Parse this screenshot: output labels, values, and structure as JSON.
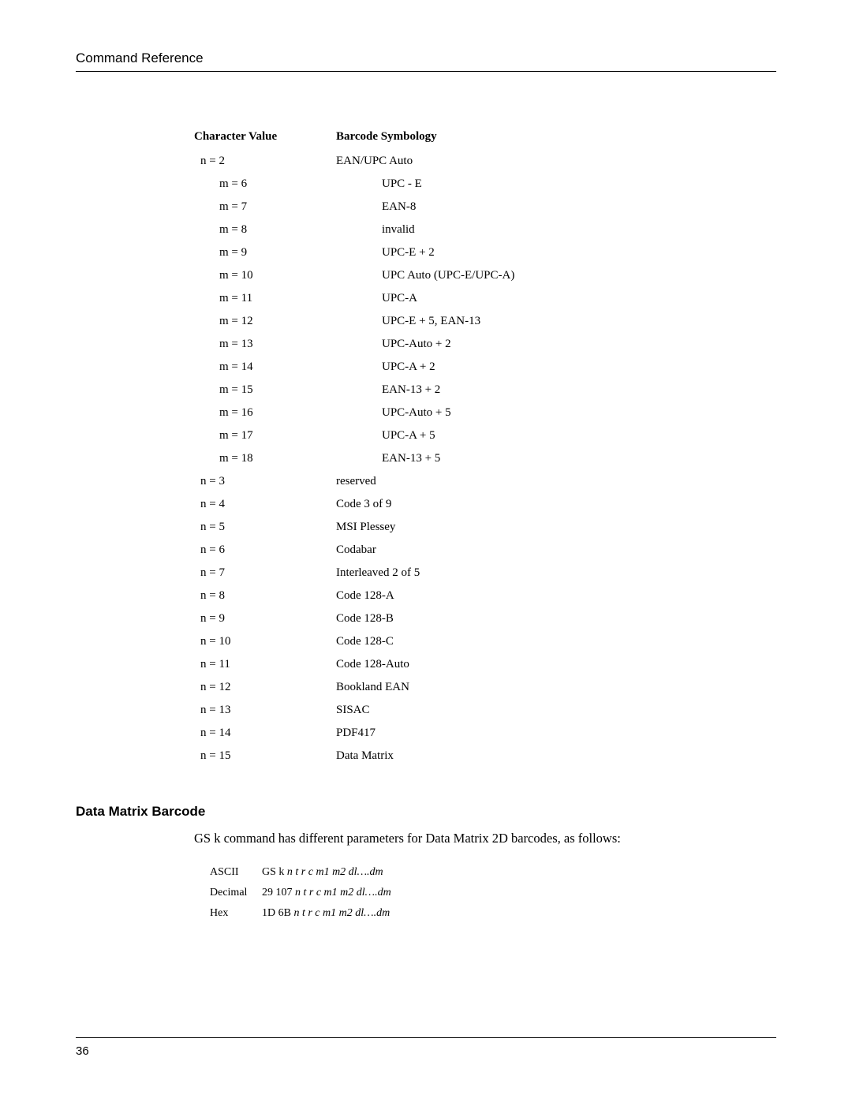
{
  "header": {
    "left": "Command Reference",
    "right": ""
  },
  "table": {
    "col1_header": "Character Value",
    "col2_header": "Barcode Symbology",
    "rows": [
      {
        "c": "n = 2",
        "s": "EAN/UPC Auto",
        "indent": 0,
        "sindent": 0
      },
      {
        "c": "m = 6",
        "s": "UPC - E",
        "indent": 1,
        "sindent": 1
      },
      {
        "c": "m = 7",
        "s": "EAN-8",
        "indent": 1,
        "sindent": 1
      },
      {
        "c": "m = 8",
        "s": "invalid",
        "indent": 1,
        "sindent": 1
      },
      {
        "c": "m = 9",
        "s": "UPC-E + 2",
        "indent": 1,
        "sindent": 1
      },
      {
        "c": "m = 10",
        "s": "UPC Auto (UPC-E/UPC-A)",
        "indent": 1,
        "sindent": 1
      },
      {
        "c": "m = 11",
        "s": "UPC-A",
        "indent": 1,
        "sindent": 1
      },
      {
        "c": "m = 12",
        "s": "UPC-E + 5, EAN-13",
        "indent": 1,
        "sindent": 1
      },
      {
        "c": "m = 13",
        "s": "UPC-Auto + 2",
        "indent": 1,
        "sindent": 1
      },
      {
        "c": "m = 14",
        "s": "UPC-A + 2",
        "indent": 1,
        "sindent": 1
      },
      {
        "c": "m = 15",
        "s": "EAN-13 + 2",
        "indent": 1,
        "sindent": 1
      },
      {
        "c": "m = 16",
        "s": "UPC-Auto + 5",
        "indent": 1,
        "sindent": 1
      },
      {
        "c": "m = 17",
        "s": "UPC-A + 5",
        "indent": 1,
        "sindent": 1
      },
      {
        "c": "m = 18",
        "s": "EAN-13 + 5",
        "indent": 1,
        "sindent": 1
      },
      {
        "c": "n = 3",
        "s": "reserved",
        "indent": 0,
        "sindent": 0
      },
      {
        "c": "n = 4",
        "s": "Code 3 of 9",
        "indent": 0,
        "sindent": 0
      },
      {
        "c": "n = 5",
        "s": "MSI Plessey",
        "indent": 0,
        "sindent": 0
      },
      {
        "c": "n = 6",
        "s": "Codabar",
        "indent": 0,
        "sindent": 0
      },
      {
        "c": "n = 7",
        "s": "Interleaved 2 of 5",
        "indent": 0,
        "sindent": 0
      },
      {
        "c": "n = 8",
        "s": "Code 128-A",
        "indent": 0,
        "sindent": 0
      },
      {
        "c": "n = 9",
        "s": "Code 128-B",
        "indent": 0,
        "sindent": 0
      },
      {
        "c": "n = 10",
        "s": "Code 128-C",
        "indent": 0,
        "sindent": 0
      },
      {
        "c": "n = 11",
        "s": "Code 128-Auto",
        "indent": 0,
        "sindent": 0
      },
      {
        "c": "n = 12",
        "s": "Bookland EAN",
        "indent": 0,
        "sindent": 0
      },
      {
        "c": "n = 13",
        "s": "SISAC",
        "indent": 0,
        "sindent": 0
      },
      {
        "c": "n = 14",
        "s": "PDF417",
        "indent": 0,
        "sindent": 0
      },
      {
        "c": "n = 15",
        "s": "Data Matrix",
        "indent": 0,
        "sindent": 0
      }
    ]
  },
  "section": {
    "heading": "Data Matrix Barcode",
    "intro": "GS k command has different parameters for Data Matrix 2D barcodes, as follows:"
  },
  "codetable": {
    "rows": [
      {
        "label": "ASCII",
        "prefix": "GS k ",
        "params": "n t r c m1 m2 dl….dm"
      },
      {
        "label": "Decimal",
        "prefix": "29 107 ",
        "params": "n t r c m1 m2 dl….dm"
      },
      {
        "label": "Hex",
        "prefix": "1D 6B ",
        "params": "n t r c m1 m2 dl….dm"
      }
    ]
  },
  "footer": {
    "page": "36"
  }
}
